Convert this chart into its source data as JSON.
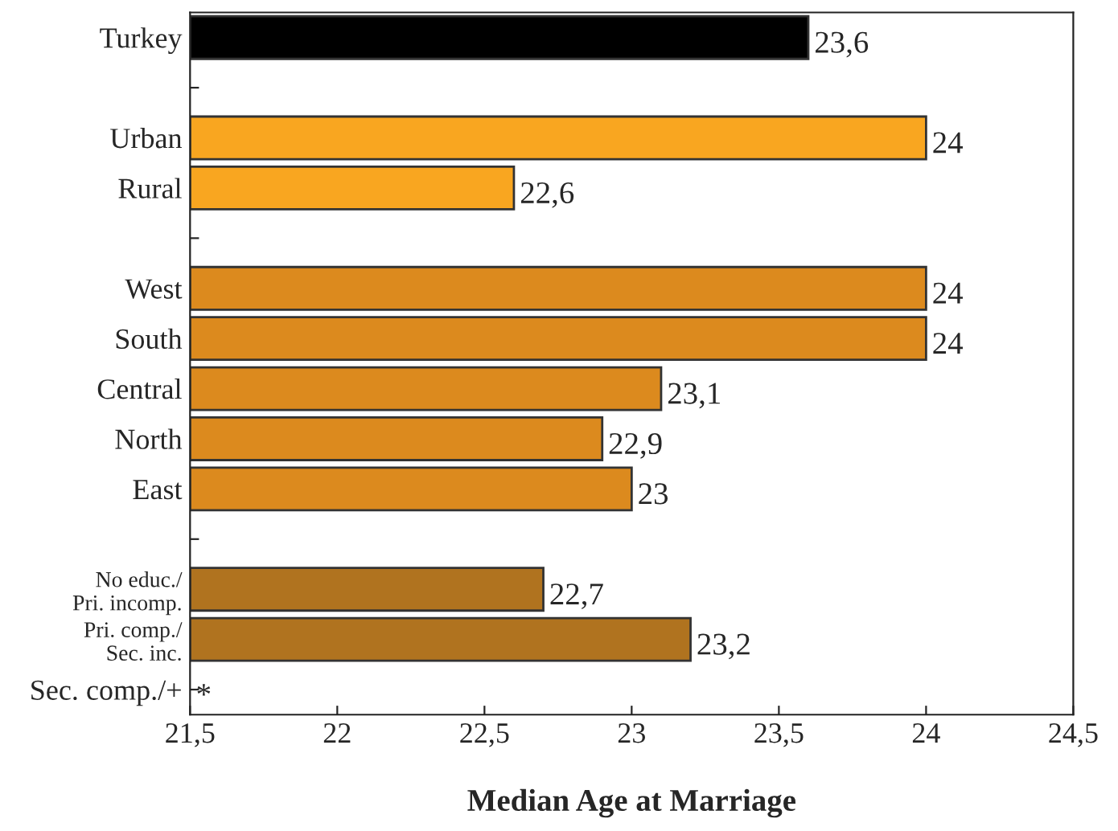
{
  "chart_data": {
    "type": "bar",
    "orientation": "horizontal",
    "xlabel": "Median Age at Marriage",
    "categories": [
      "Turkey",
      null,
      "Urban",
      "Rural",
      null,
      "West",
      "South",
      "Central",
      "North",
      "East",
      null,
      "No educ./\nPri. incomp.",
      "Pri. comp./\nSec. inc.",
      "Sec. comp./+"
    ],
    "values": [
      23.6,
      null,
      24,
      22.6,
      null,
      24,
      24,
      23.1,
      22.9,
      23,
      null,
      22.7,
      23.2,
      null
    ],
    "colors": [
      "#000000",
      null,
      "#f9a620",
      "#f9a620",
      null,
      "#dc8a1e",
      "#dc8a1e",
      "#dc8a1e",
      "#dc8a1e",
      "#dc8a1e",
      null,
      "#b0731f",
      "#b0731f",
      null
    ],
    "value_labels": [
      "23,6",
      null,
      "24",
      "22,6",
      null,
      "24",
      "24",
      "23,1",
      "22,9",
      "23",
      null,
      "22,7",
      "23,2",
      "*"
    ],
    "xlim": [
      21.5,
      24.5
    ],
    "xticks": [
      {
        "value": 21.5,
        "label": "21,5"
      },
      22,
      {
        "value": 22.5,
        "label": "22,5"
      },
      23,
      {
        "value": 23.5,
        "label": "23,5"
      },
      24,
      {
        "value": 24.5,
        "label": "24,5"
      }
    ],
    "grid": false,
    "legend": false
  }
}
